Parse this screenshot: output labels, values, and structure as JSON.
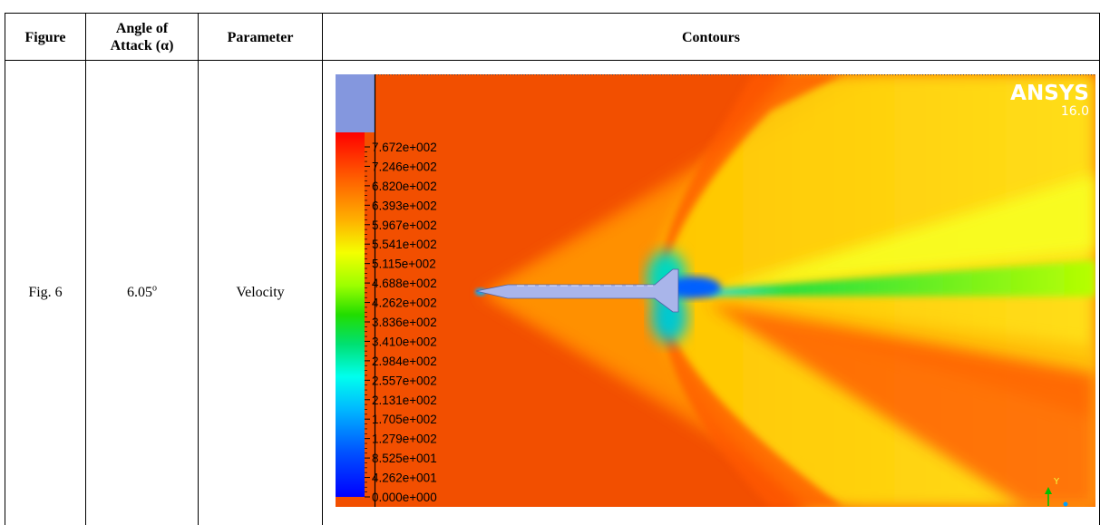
{
  "table": {
    "headers": {
      "figure": "Figure",
      "angle_line1": "Angle of",
      "angle_line2": "Attack (α)",
      "parameter": "Parameter",
      "contours": "Contours"
    },
    "row": {
      "figure": "Fig. 6",
      "angle_value": "6.05",
      "angle_unit": "o",
      "parameter": "Velocity"
    }
  },
  "contour_plot": {
    "colormap_labels": [
      "7.672e+002",
      "7.246e+002",
      "6.820e+002",
      "6.393e+002",
      "5.967e+002",
      "5.541e+002",
      "5.115e+002",
      "4.688e+002",
      "4.262e+002",
      "3.836e+002",
      "3.410e+002",
      "2.984e+002",
      "2.557e+002",
      "2.131e+002",
      "1.705e+002",
      "1.279e+002",
      "8.525e+001",
      "4.262e+001",
      "0.000e+000"
    ],
    "brand": "ANSYS",
    "version": "16.0",
    "axis_y_label": "Y",
    "colors": {
      "background": "#f24f00",
      "colorbar_panel": "#8497de",
      "body": "#a9b5ea"
    }
  }
}
